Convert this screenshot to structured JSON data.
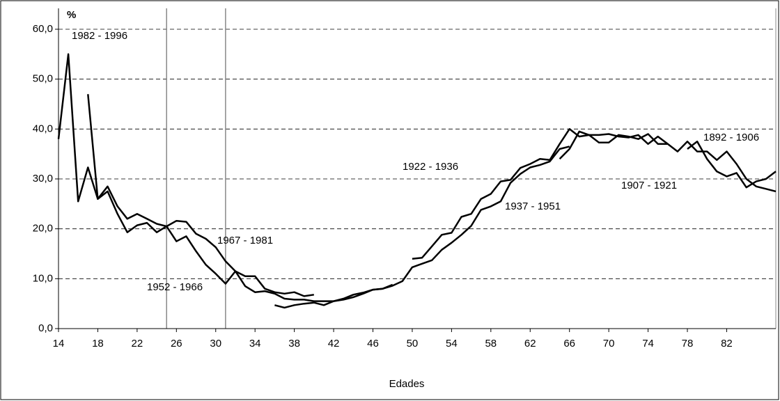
{
  "chart_data": {
    "type": "line",
    "x_label": "Edades",
    "y_unit": "%",
    "xlim": [
      14,
      87
    ],
    "xticks": [
      14,
      18,
      22,
      26,
      30,
      34,
      38,
      42,
      46,
      50,
      54,
      58,
      62,
      66,
      70,
      74,
      78,
      82
    ],
    "ylim": [
      0,
      60
    ],
    "yticks": [
      {
        "value": 0,
        "label": "0,0"
      },
      {
        "value": 10,
        "label": "10,0"
      },
      {
        "value": 20,
        "label": "20,0"
      },
      {
        "value": 30,
        "label": "30,0"
      },
      {
        "value": 40,
        "label": "40,0"
      },
      {
        "value": 50,
        "label": "50,0"
      },
      {
        "value": 60,
        "label": "60,0"
      }
    ],
    "grid": true,
    "vlines": [
      25,
      31
    ],
    "series": [
      {
        "name": "1982 - 1996",
        "color": "#000000",
        "x": [
          14,
          15,
          16,
          17,
          18,
          19,
          20,
          21,
          22,
          23,
          24,
          25
        ],
        "values": [
          38,
          55,
          25.5,
          32.3,
          26,
          28.5,
          24.5,
          22,
          23,
          22,
          21,
          20.5
        ]
      },
      {
        "name": "1967 - 1981",
        "color": "#000000",
        "x": [
          17,
          18,
          19,
          20,
          21,
          22,
          23,
          24,
          25,
          26,
          27,
          28,
          29,
          30,
          31,
          32,
          33,
          34,
          35,
          36,
          37,
          38,
          39,
          40
        ],
        "values": [
          47,
          26,
          27.5,
          23,
          19.3,
          20.7,
          21.2,
          19.3,
          20.5,
          21.6,
          21.4,
          19,
          18,
          16.3,
          13.5,
          11.5,
          10.5,
          10.5,
          8,
          7.3,
          7,
          7.3,
          6.5,
          6.8
        ]
      },
      {
        "name": "1952 - 1966",
        "color": "#000000",
        "x": [
          25,
          26,
          27,
          28,
          29,
          30,
          31,
          32,
          33,
          34,
          35,
          36,
          37,
          38,
          39,
          40,
          41,
          42,
          43,
          44,
          45,
          46,
          47,
          48
        ],
        "values": [
          20.5,
          17.5,
          18.5,
          15.5,
          12.8,
          11,
          9,
          11.5,
          8.5,
          7.3,
          7.5,
          7,
          6,
          5.8,
          5.8,
          5.5,
          5.5,
          5.5,
          5.8,
          6.3,
          7,
          7.8,
          8,
          8.8
        ]
      },
      {
        "name": "1937 - 1951",
        "color": "#000000",
        "x": [
          36,
          37,
          38,
          39,
          40,
          41,
          42,
          43,
          44,
          45,
          46,
          47,
          48,
          49,
          50,
          51,
          52,
          53,
          54,
          55,
          56,
          57,
          58,
          59,
          60,
          61,
          62,
          63,
          64,
          65,
          66
        ],
        "values": [
          4.7,
          4.2,
          4.7,
          5,
          5.2,
          4.7,
          5.5,
          6,
          6.8,
          7.2,
          7.8,
          8,
          8.6,
          9.5,
          12.3,
          13,
          13.7,
          15.8,
          17.2,
          18.8,
          20.6,
          23.8,
          24.5,
          25.5,
          29.2,
          31,
          32.3,
          32.8,
          33.5,
          36,
          36.5
        ]
      },
      {
        "name": "1922 - 1936",
        "color": "#000000",
        "x": [
          50,
          51,
          52,
          53,
          54,
          55,
          56,
          57,
          58,
          59,
          60,
          61,
          62,
          63,
          64,
          65,
          66,
          67,
          68,
          69,
          70,
          71,
          72,
          73,
          74,
          75,
          76
        ],
        "values": [
          14,
          14.2,
          16.5,
          18.8,
          19.2,
          22.4,
          23,
          26,
          27,
          29.5,
          29.8,
          32.2,
          33,
          34,
          33.8,
          37,
          40,
          38.5,
          38.8,
          38.8,
          39,
          38.5,
          38.3,
          38.8,
          37,
          38.5,
          37
        ]
      },
      {
        "name": "1907 - 1921",
        "color": "#000000",
        "x": [
          65,
          66,
          67,
          68,
          69,
          70,
          71,
          72,
          73,
          74,
          75,
          76,
          77,
          78,
          79,
          80,
          81,
          82,
          83,
          84,
          85,
          86,
          87
        ],
        "values": [
          34,
          36,
          39.5,
          38.8,
          37.3,
          37.3,
          38.8,
          38.5,
          38,
          39,
          37,
          37,
          35.5,
          37.5,
          35.5,
          35.5,
          33.8,
          35.5,
          33,
          30,
          28.5,
          28,
          27.5
        ]
      },
      {
        "name": "1892 - 1906",
        "color": "#000000",
        "x": [
          78,
          79,
          80,
          81,
          82,
          83,
          84,
          85,
          86,
          87
        ],
        "values": [
          36,
          37.5,
          34,
          31.5,
          30.5,
          31.2,
          28.3,
          29.5,
          30,
          31.5
        ]
      }
    ]
  }
}
